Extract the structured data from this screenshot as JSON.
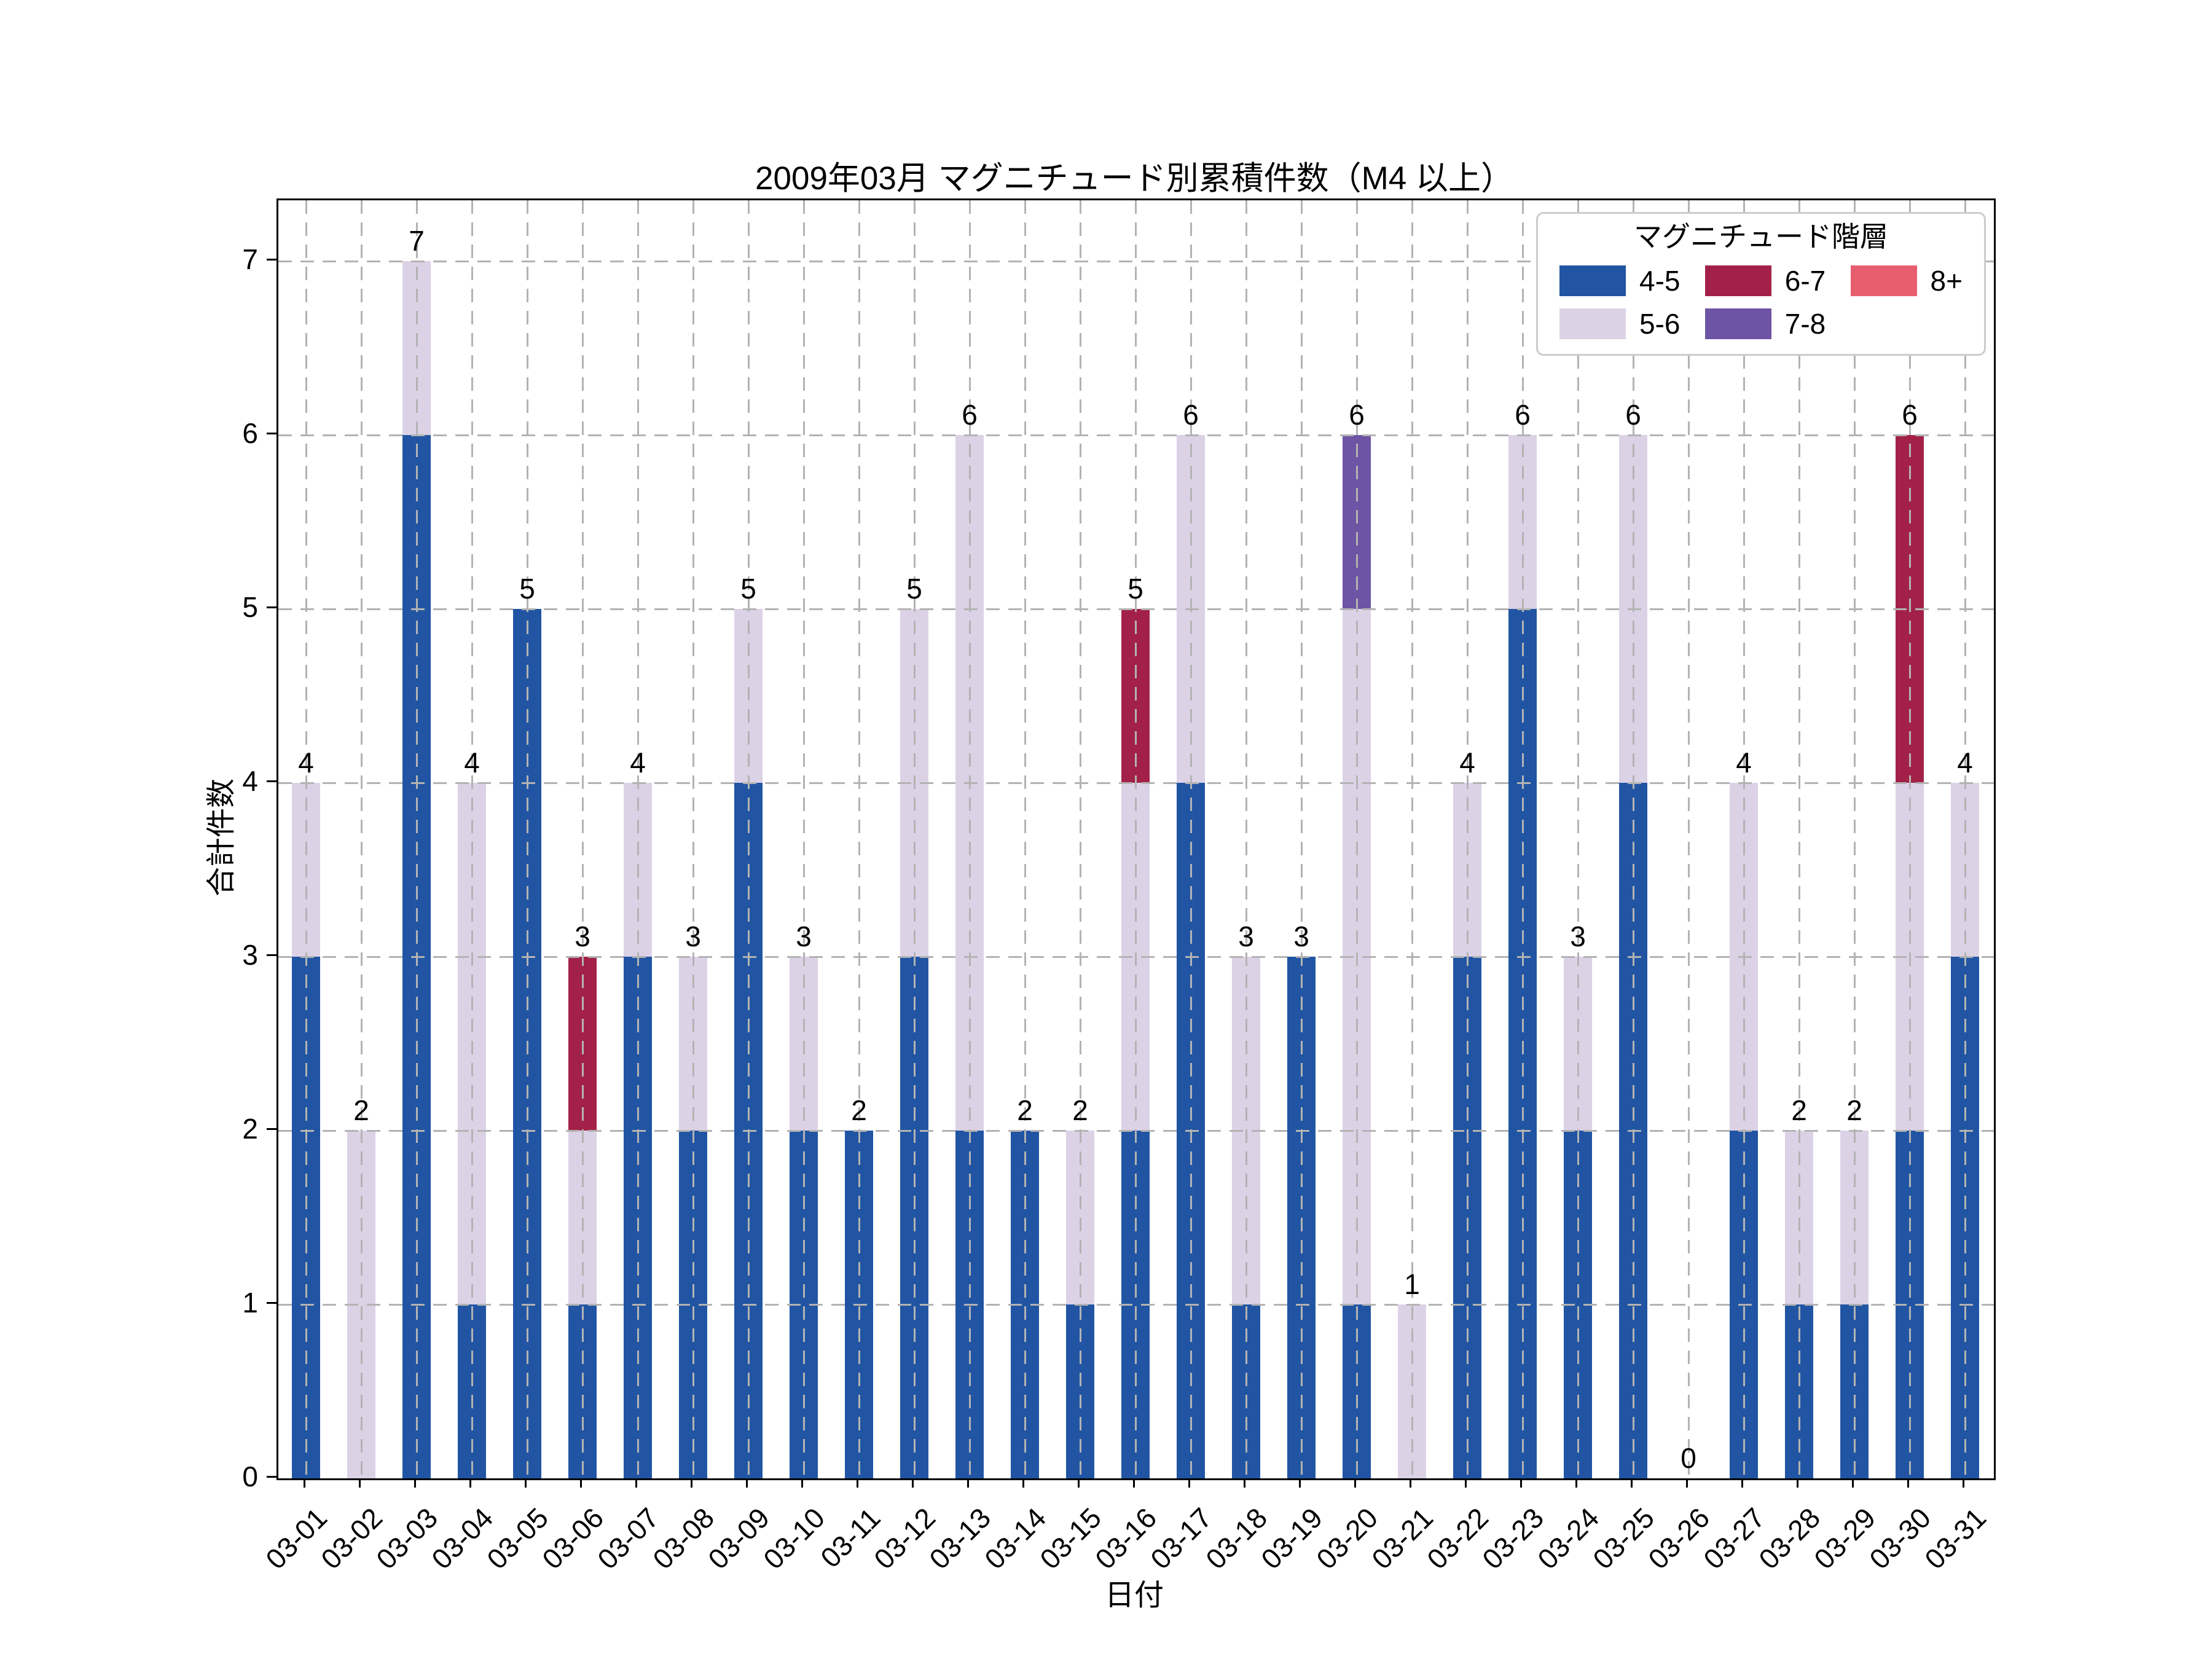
{
  "title": "2009年03月 マグニチュード別累積件数（M4 以上）",
  "axes": {
    "x_label": "日付",
    "y_label": "合計件数",
    "y_ticks": [
      "0",
      "1",
      "2",
      "3",
      "4",
      "5",
      "6",
      "7"
    ]
  },
  "legend": {
    "title": "マグニチュード階層",
    "columns": [
      [
        0,
        1
      ],
      [
        2,
        3
      ],
      [
        4
      ]
    ]
  },
  "colors": {
    "grid": "#b3b3b3",
    "spine": "#000000",
    "legend_border": "#cccccc"
  },
  "chart_data": {
    "type": "bar",
    "stacked": true,
    "title": "2009年03月 マグニチュード別累積件数（M4 以上）",
    "xlabel": "日付",
    "ylabel": "合計件数",
    "ylim": [
      0,
      7.35
    ],
    "grid": true,
    "legend_position": "upper right",
    "categories": [
      "03-01",
      "03-02",
      "03-03",
      "03-04",
      "03-05",
      "03-06",
      "03-07",
      "03-08",
      "03-09",
      "03-10",
      "03-11",
      "03-12",
      "03-13",
      "03-14",
      "03-15",
      "03-16",
      "03-17",
      "03-18",
      "03-19",
      "03-20",
      "03-21",
      "03-22",
      "03-23",
      "03-24",
      "03-25",
      "03-26",
      "03-27",
      "03-28",
      "03-29",
      "03-30",
      "03-31"
    ],
    "series": [
      {
        "name": "4-5",
        "color": "#2155a3",
        "values": [
          3,
          0,
          6,
          1,
          5,
          1,
          3,
          2,
          4,
          2,
          2,
          3,
          2,
          2,
          1,
          2,
          4,
          1,
          3,
          1,
          0,
          3,
          5,
          2,
          4,
          0,
          2,
          1,
          1,
          2,
          3
        ]
      },
      {
        "name": "5-6",
        "color": "#dcd2e6",
        "values": [
          1,
          2,
          1,
          3,
          0,
          1,
          1,
          1,
          1,
          1,
          0,
          2,
          4,
          0,
          1,
          2,
          2,
          2,
          0,
          4,
          1,
          1,
          1,
          1,
          2,
          0,
          2,
          1,
          1,
          2,
          1
        ]
      },
      {
        "name": "6-7",
        "color": "#a32148",
        "values": [
          0,
          0,
          0,
          0,
          0,
          1,
          0,
          0,
          0,
          0,
          0,
          0,
          0,
          0,
          0,
          1,
          0,
          0,
          0,
          0,
          0,
          0,
          0,
          0,
          0,
          0,
          0,
          0,
          0,
          2,
          0
        ]
      },
      {
        "name": "7-8",
        "color": "#6d54a4",
        "values": [
          0,
          0,
          0,
          0,
          0,
          0,
          0,
          0,
          0,
          0,
          0,
          0,
          0,
          0,
          0,
          0,
          0,
          0,
          0,
          1,
          0,
          0,
          0,
          0,
          0,
          0,
          0,
          0,
          0,
          0,
          0
        ]
      },
      {
        "name": "8+",
        "color": "#e95e6f",
        "values": [
          0,
          0,
          0,
          0,
          0,
          0,
          0,
          0,
          0,
          0,
          0,
          0,
          0,
          0,
          0,
          0,
          0,
          0,
          0,
          0,
          0,
          0,
          0,
          0,
          0,
          0,
          0,
          0,
          0,
          0,
          0
        ]
      }
    ],
    "totals": [
      4,
      2,
      7,
      4,
      5,
      3,
      4,
      3,
      5,
      3,
      2,
      5,
      6,
      2,
      2,
      5,
      6,
      3,
      3,
      6,
      1,
      4,
      6,
      3,
      6,
      0,
      4,
      2,
      2,
      6,
      4
    ]
  }
}
